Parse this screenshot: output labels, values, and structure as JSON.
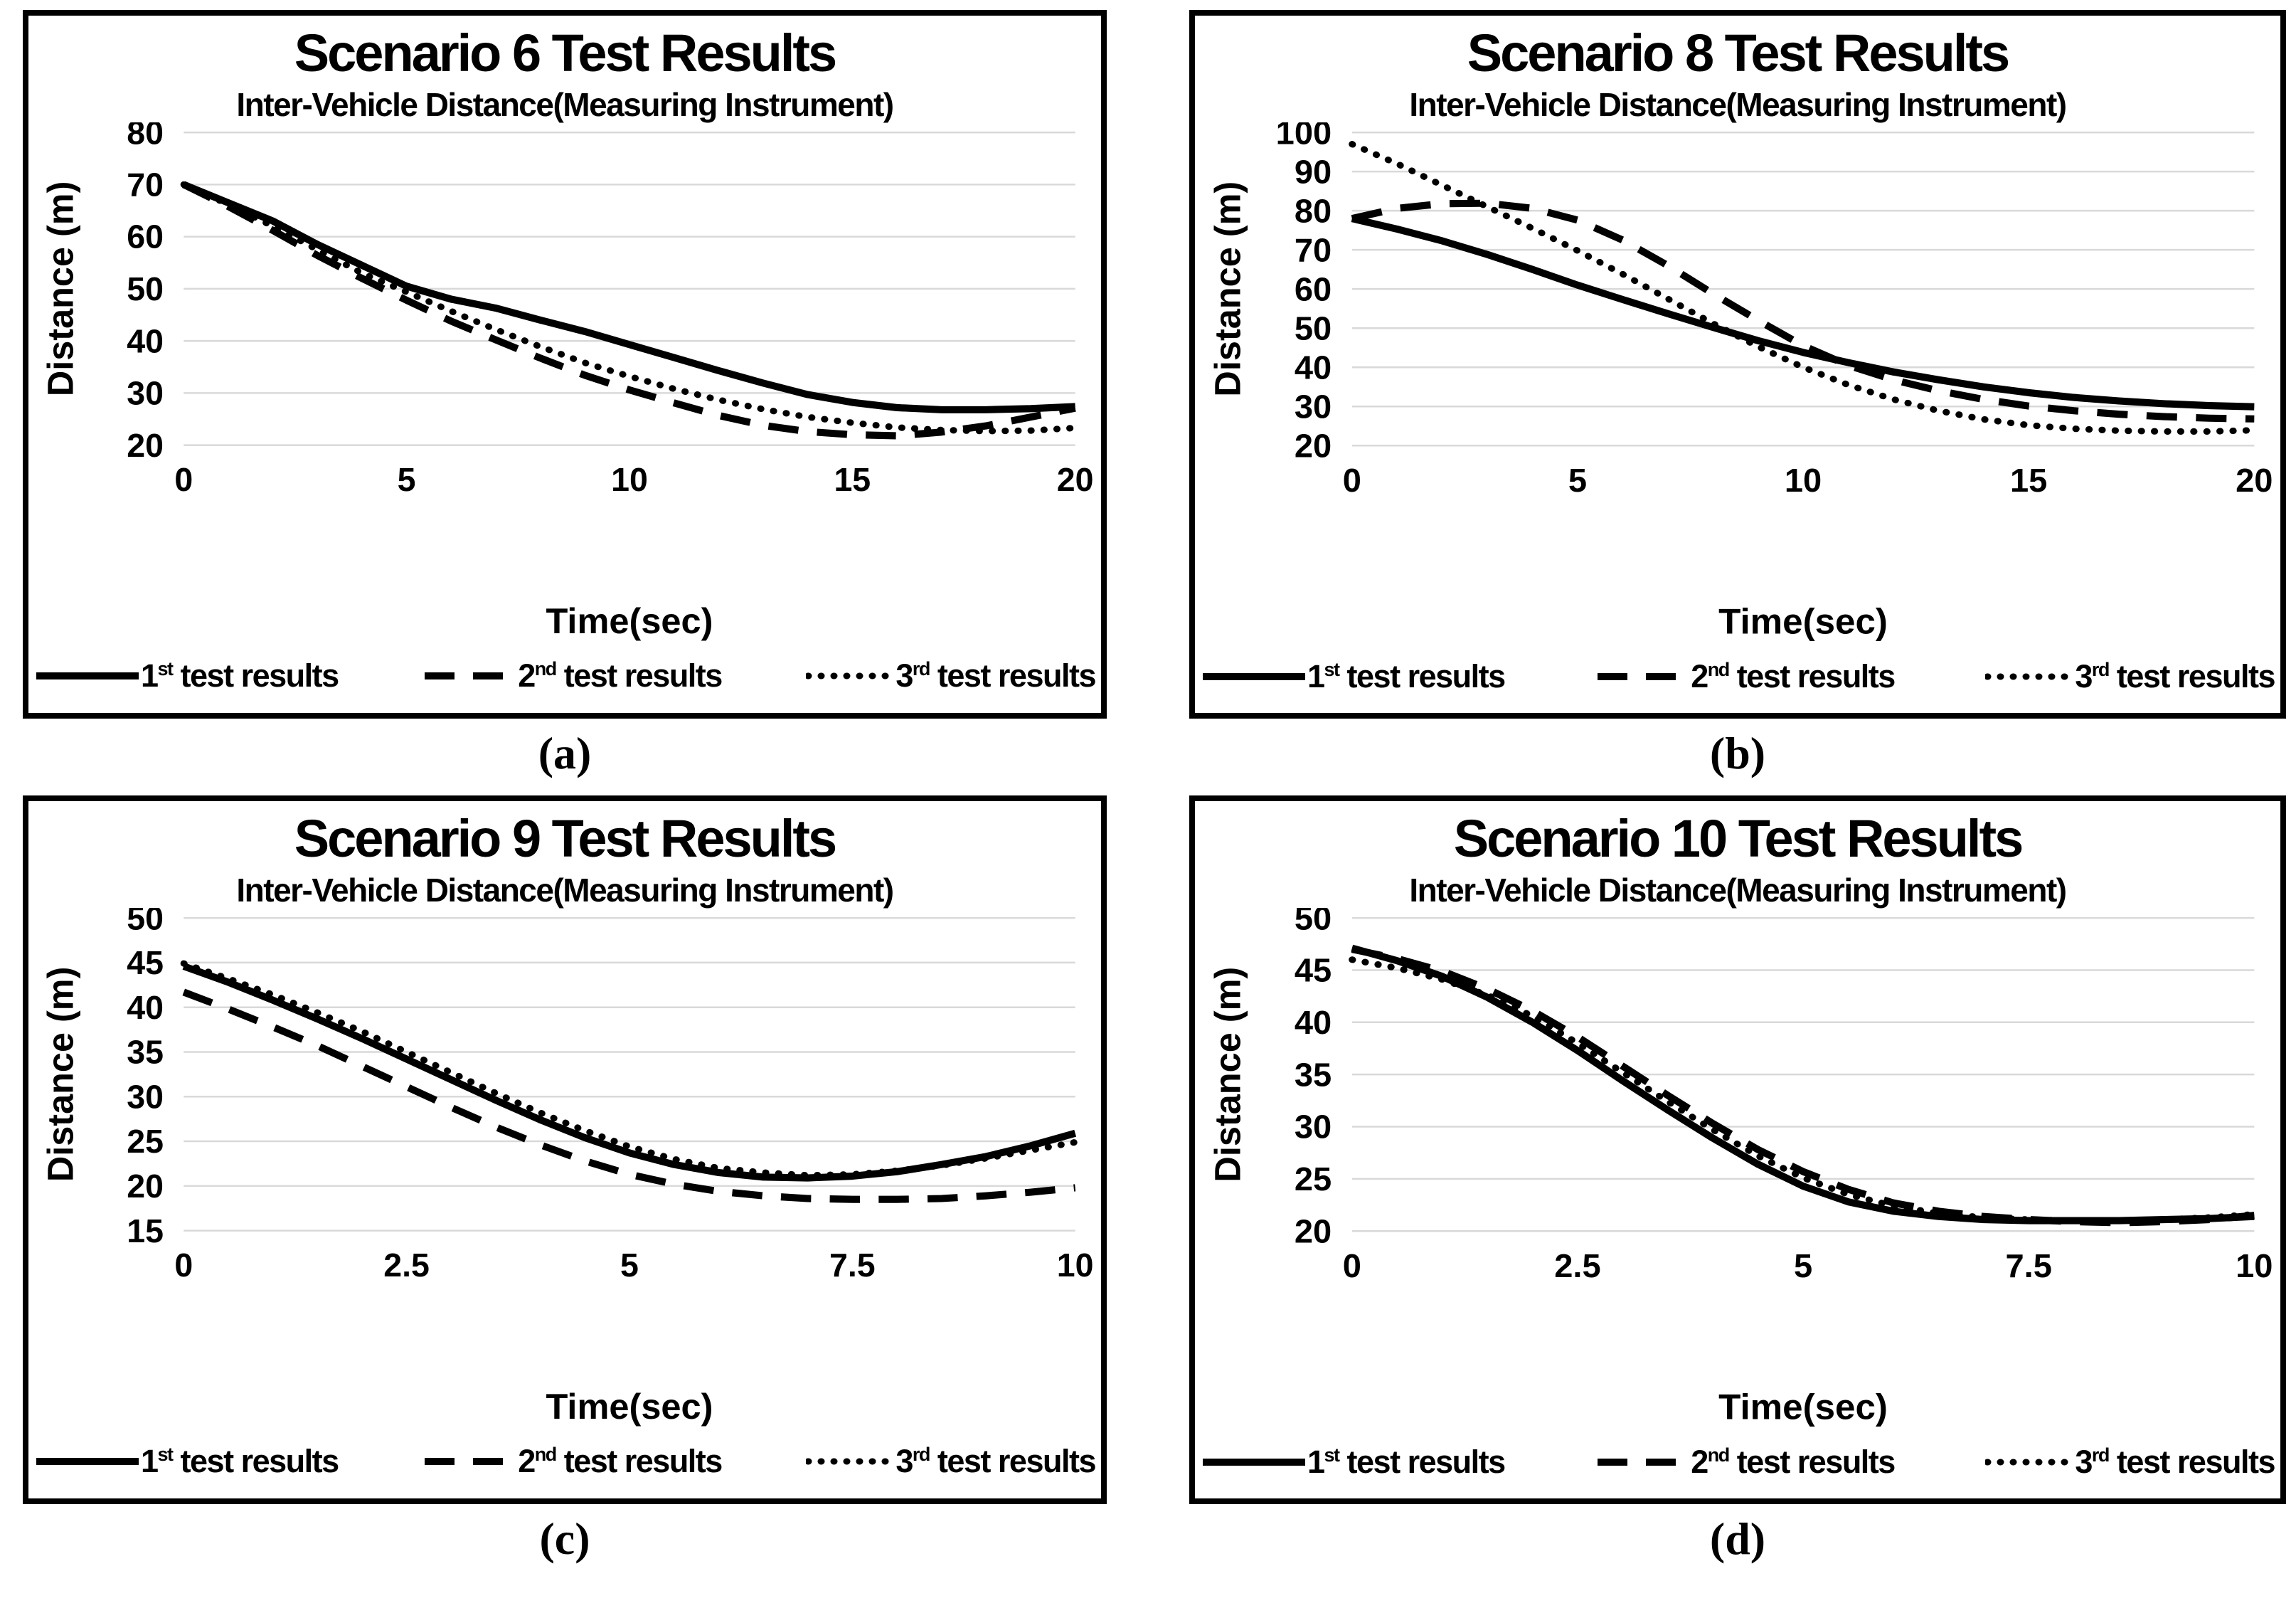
{
  "colors": {
    "series_line": "#000000",
    "gridline": "#d9d9d9",
    "panel_border": "#000000",
    "background": "#ffffff"
  },
  "legend": {
    "position": "bottom",
    "items": [
      {
        "base": "1",
        "sup": "st",
        "rest": " test results",
        "line": "solid"
      },
      {
        "base": "2",
        "sup": "nd",
        "rest": " test results",
        "line": "dashed"
      },
      {
        "base": "3",
        "sup": "rd",
        "rest": " test results",
        "line": "dotted"
      }
    ]
  },
  "chart_data": [
    {
      "panel": "a",
      "caption": "(a)",
      "type": "line",
      "title": "Scenario 6 Test Results",
      "subtitle": "Inter-Vehicle Distance(Measuring Instrument)",
      "xlabel": "Time(sec)",
      "ylabel": "Distance (m)",
      "xlim": [
        0,
        20
      ],
      "ylim": [
        20,
        80
      ],
      "xticks": [
        0,
        5,
        10,
        15,
        20
      ],
      "yticks": [
        20,
        30,
        40,
        50,
        60,
        70,
        80
      ],
      "grid": true,
      "x": [
        0,
        1,
        2,
        3,
        4,
        5,
        6,
        7,
        8,
        9,
        10,
        11,
        12,
        13,
        14,
        15,
        16,
        17,
        18,
        19,
        20
      ],
      "series": [
        {
          "name": "1st test results",
          "style": "solid",
          "values": [
            70,
            66.5,
            63,
            58.5,
            54.5,
            50.5,
            48,
            46.3,
            44,
            41.8,
            39.3,
            36.8,
            34.3,
            31.9,
            29.7,
            28.2,
            27.2,
            26.8,
            26.8,
            27,
            27.4
          ]
        },
        {
          "name": "2nd test results",
          "style": "dashed",
          "values": [
            70,
            65.8,
            61.2,
            56.4,
            52,
            47.8,
            43.8,
            40.2,
            36.7,
            33.4,
            30.6,
            28.1,
            25.7,
            23.8,
            22.6,
            22,
            21.8,
            22.5,
            23.7,
            25.4,
            27.1
          ]
        },
        {
          "name": "3rd test results",
          "style": "dotted",
          "values": [
            70,
            66.2,
            62,
            57.5,
            53,
            49.4,
            45.7,
            42.2,
            38.9,
            35.8,
            33.2,
            30.8,
            28.7,
            26.9,
            25.4,
            24.3,
            23.4,
            22.9,
            22.7,
            22.8,
            23.3
          ]
        }
      ]
    },
    {
      "panel": "b",
      "caption": "(b)",
      "type": "line",
      "title": "Scenario 8 Test Results",
      "subtitle": "Inter-Vehicle Distance(Measuring Instrument)",
      "xlabel": "Time(sec)",
      "ylabel": "Distance (m)",
      "xlim": [
        0,
        20
      ],
      "ylim": [
        20,
        100
      ],
      "xticks": [
        0,
        5,
        10,
        15,
        20
      ],
      "yticks": [
        20,
        30,
        40,
        50,
        60,
        70,
        80,
        90,
        100
      ],
      "grid": true,
      "x": [
        0,
        1,
        2,
        3,
        4,
        5,
        6,
        7,
        8,
        9,
        10,
        11,
        12,
        13,
        14,
        15,
        16,
        17,
        18,
        19,
        20
      ],
      "series": [
        {
          "name": "1st test results",
          "style": "solid",
          "values": [
            78,
            75.3,
            72.3,
            68.8,
            65,
            61,
            57.3,
            53.7,
            50.2,
            46.8,
            43.8,
            41.2,
            38.8,
            36.8,
            35,
            33.5,
            32.3,
            31.4,
            30.7,
            30.2,
            29.9
          ]
        },
        {
          "name": "2nd test results",
          "style": "dashed",
          "values": [
            78,
            80.6,
            81.8,
            81.9,
            80.6,
            77.6,
            72.5,
            66,
            58.8,
            52,
            45.5,
            40.5,
            36.8,
            34,
            31.8,
            30.1,
            28.9,
            28,
            27.4,
            27,
            26.8
          ]
        },
        {
          "name": "3rd test results",
          "style": "dotted",
          "values": [
            97,
            92,
            86.5,
            81,
            75.5,
            69.8,
            63.8,
            57.5,
            51.2,
            45.3,
            40,
            35.5,
            31.8,
            28.9,
            26.7,
            25.2,
            24.3,
            23.8,
            23.6,
            23.6,
            23.9
          ]
        }
      ]
    },
    {
      "panel": "c",
      "caption": "(c)",
      "type": "line",
      "title": "Scenario 9 Test Results",
      "subtitle": "Inter-Vehicle Distance(Measuring Instrument)",
      "xlabel": "Time(sec)",
      "ylabel": "Distance (m)",
      "xlim": [
        0,
        10
      ],
      "ylim": [
        15,
        50
      ],
      "xticks": [
        0,
        2.5,
        5,
        7.5,
        10
      ],
      "yticks": [
        15,
        20,
        25,
        30,
        35,
        40,
        45,
        50
      ],
      "grid": true,
      "x": [
        0,
        0.5,
        1,
        1.5,
        2,
        2.5,
        3,
        3.5,
        4,
        4.5,
        5,
        5.5,
        6,
        6.5,
        7,
        7.5,
        8,
        8.5,
        9,
        9.5,
        10
      ],
      "series": [
        {
          "name": "1st test results",
          "style": "solid",
          "values": [
            44.6,
            42.8,
            40.8,
            38.7,
            36.5,
            34.2,
            31.9,
            29.6,
            27.4,
            25.4,
            23.7,
            22.4,
            21.5,
            21,
            20.9,
            21.1,
            21.6,
            22.4,
            23.3,
            24.5,
            25.9
          ]
        },
        {
          "name": "2nd test results",
          "style": "dashed",
          "values": [
            41.7,
            39.8,
            37.8,
            35.7,
            33.4,
            31.1,
            28.8,
            26.6,
            24.6,
            22.8,
            21.3,
            20.2,
            19.4,
            18.9,
            18.6,
            18.5,
            18.5,
            18.6,
            18.9,
            19.3,
            19.8
          ]
        },
        {
          "name": "3rd test results",
          "style": "dotted",
          "values": [
            44.9,
            43.2,
            41.4,
            39.4,
            37.3,
            35,
            32.7,
            30.4,
            28.2,
            26.2,
            24.4,
            23,
            22,
            21.5,
            21.2,
            21.3,
            21.7,
            22.3,
            23.1,
            24,
            24.9
          ]
        }
      ]
    },
    {
      "panel": "d",
      "caption": "(d)",
      "type": "line",
      "title": "Scenario 10 Test Results",
      "subtitle": "Inter-Vehicle Distance(Measuring Instrument)",
      "xlabel": "Time(sec)",
      "ylabel": "Distance (m)",
      "xlim": [
        0,
        10
      ],
      "ylim": [
        20,
        50
      ],
      "xticks": [
        0,
        2.5,
        5,
        7.5,
        10
      ],
      "yticks": [
        20,
        25,
        30,
        35,
        40,
        45,
        50
      ],
      "grid": true,
      "x": [
        0,
        0.5,
        1,
        1.5,
        2,
        2.5,
        3,
        3.5,
        4,
        4.5,
        5,
        5.5,
        6,
        6.5,
        7,
        7.5,
        8,
        8.5,
        9,
        9.5,
        10
      ],
      "series": [
        {
          "name": "1st test results",
          "style": "solid",
          "values": [
            47.1,
            45.9,
            44.4,
            42.4,
            40,
            37.3,
            34.4,
            31.6,
            28.9,
            26.4,
            24.3,
            22.8,
            21.9,
            21.4,
            21.1,
            21,
            21,
            21,
            21.1,
            21.2,
            21.4
          ]
        },
        {
          "name": "2nd test results",
          "style": "dashed",
          "values": [
            47,
            46.1,
            44.9,
            43.2,
            41.1,
            38.6,
            35.8,
            33,
            30.3,
            27.8,
            25.7,
            24,
            22.7,
            21.9,
            21.4,
            21.1,
            20.9,
            20.8,
            20.9,
            21.1,
            21.5
          ]
        },
        {
          "name": "3rd test results",
          "style": "dotted",
          "values": [
            46,
            45.2,
            44.1,
            42.6,
            40.6,
            38,
            35.2,
            32.4,
            29.7,
            27.2,
            25.1,
            23.5,
            22.4,
            21.7,
            21.3,
            21.1,
            21,
            21,
            21.1,
            21.3,
            21.6
          ]
        }
      ]
    }
  ]
}
